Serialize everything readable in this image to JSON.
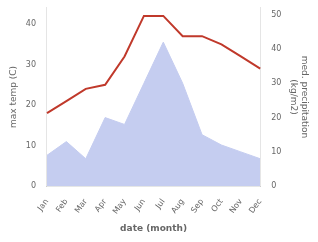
{
  "chart_data": {
    "type": "line",
    "categories": [
      "Jan",
      "Feb",
      "Mar",
      "Apr",
      "May",
      "Jun",
      "Jul",
      "Aug",
      "Sep",
      "Oct",
      "Nov",
      "Dec"
    ],
    "xlabel": "date (month)",
    "ylabel": "max temp (C)",
    "y2label": "med. precipitation\n(kg/m2)",
    "series": [
      {
        "type": "area",
        "axis": "y2",
        "color": "#c5cdf0",
        "values": [
          9,
          13,
          8,
          20,
          18,
          30,
          42,
          30,
          15,
          12,
          10,
          8
        ]
      },
      {
        "type": "line",
        "color": "#c0392b",
        "values": [
          18,
          21,
          24,
          25,
          32,
          42,
          42,
          37,
          37,
          35,
          32,
          29
        ]
      }
    ],
    "ylim": [
      0,
      44
    ],
    "yticks": [
      0,
      10,
      20,
      30,
      40
    ],
    "y2lim": [
      0,
      52
    ],
    "y2ticks": [
      0,
      10,
      20,
      30,
      40,
      50
    ],
    "grid": false
  }
}
